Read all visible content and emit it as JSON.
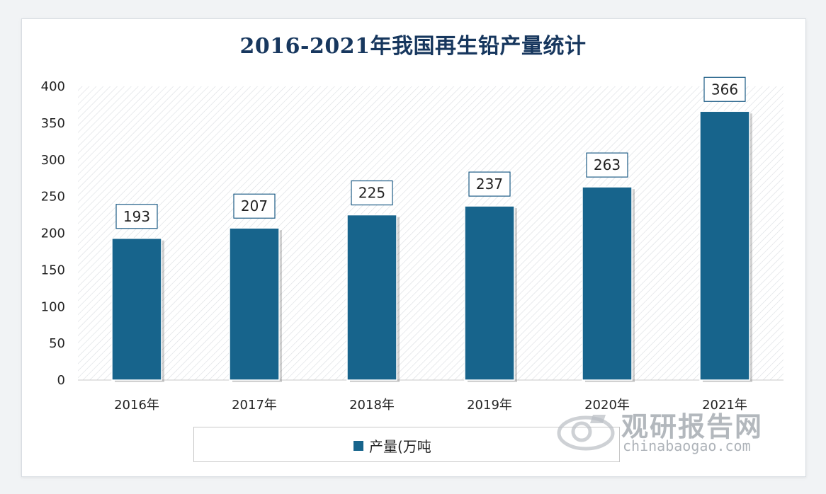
{
  "title": "2016-2021年我国再生铅产量统计",
  "colors": {
    "bar": "#17648c",
    "title": "#17375e"
  },
  "legend": {
    "label": "产量(万吨"
  },
  "watermark": {
    "name": "观研报告网",
    "url": "chinabaogao.com"
  },
  "chart_data": {
    "type": "bar",
    "title": "2016-2021年我国再生铅产量统计",
    "categories": [
      "2016年",
      "2017年",
      "2018年",
      "2019年",
      "2020年",
      "2021年"
    ],
    "series": [
      {
        "name": "产量(万吨",
        "values": [
          193,
          207,
          225,
          237,
          263,
          366
        ]
      }
    ],
    "ylim": [
      0,
      400
    ],
    "yticks": [
      0,
      50,
      100,
      150,
      200,
      250,
      300,
      350,
      400
    ],
    "grid": false,
    "data_labels": true,
    "legend_position": "bottom"
  }
}
